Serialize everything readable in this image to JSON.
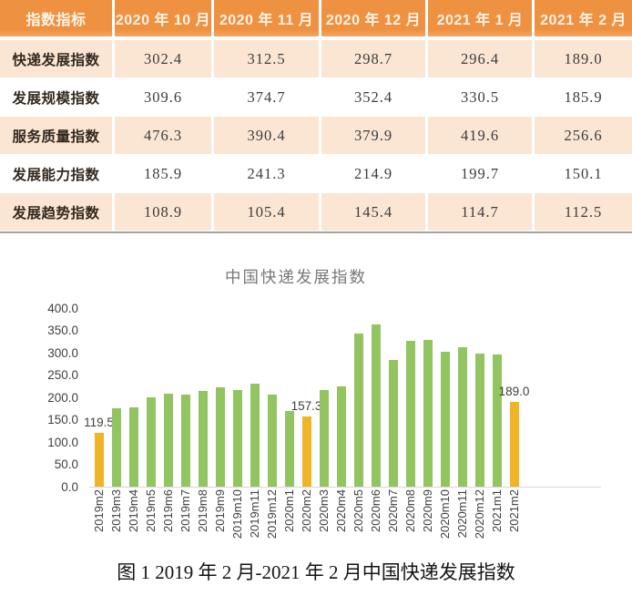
{
  "table": {
    "columns": [
      "指数指标",
      "2020 年 10 月",
      "2020 年 11 月",
      "2020 年 12 月",
      "2021 年 1 月",
      "2021 年 2 月"
    ],
    "rows": [
      {
        "label": "快递发展指数",
        "values": [
          "302.4",
          "312.5",
          "298.7",
          "296.4",
          "189.0"
        ]
      },
      {
        "label": "发展规模指数",
        "values": [
          "309.6",
          "374.7",
          "352.4",
          "330.5",
          "185.9"
        ]
      },
      {
        "label": "服务质量指数",
        "values": [
          "476.3",
          "390.4",
          "379.9",
          "419.6",
          "256.6"
        ]
      },
      {
        "label": "发展能力指数",
        "values": [
          "185.9",
          "241.3",
          "214.9",
          "199.7",
          "150.1"
        ]
      },
      {
        "label": "发展趋势指数",
        "values": [
          "108.9",
          "105.4",
          "145.4",
          "114.7",
          "112.5"
        ]
      }
    ],
    "colors": {
      "header_bg": "#ee9140",
      "header_bg_light": "#f3a765",
      "header_text": "#fdf4e8",
      "row_odd_bg": "#fbe6d3",
      "row_even_bg": "#ffffff",
      "body_text": "#3c3c3c",
      "bottom_border": "#a6a29c"
    }
  },
  "chart_data": {
    "type": "bar",
    "title": "中国快递发展指数",
    "x": [
      "2019m2",
      "2019m3",
      "2019m4",
      "2019m5",
      "2019m6",
      "2019m7",
      "2019m8",
      "2019m9",
      "2019m10",
      "2019m11",
      "2019m12",
      "2020m1",
      "2020m2",
      "2020m3",
      "2020m4",
      "2020m5",
      "2020m6",
      "2020m7",
      "2020m8",
      "2020m9",
      "2020m10",
      "2020m11",
      "2020m12",
      "2021m1",
      "2021m2"
    ],
    "values": [
      119.5,
      176,
      178,
      200,
      209,
      207,
      215,
      223,
      217,
      230,
      206,
      169,
      157.3,
      216,
      224,
      343,
      364,
      283,
      327,
      329,
      302.4,
      312.5,
      298.7,
      296.4,
      189.0
    ],
    "highlight_indexes": [
      0,
      12,
      24
    ],
    "data_labels": [
      {
        "index": 0,
        "text": "119.5"
      },
      {
        "index": 12,
        "text": "157.3"
      },
      {
        "index": 24,
        "text": "189.0"
      }
    ],
    "bar_color": "#92c45f",
    "highlight_color": "#f0b428",
    "ylim": [
      0,
      400
    ],
    "ytick_step": 50,
    "yticks": [
      "400.0",
      "350.0",
      "300.0",
      "250.0",
      "200.0",
      "150.0",
      "100.0",
      "50.0",
      "0.0"
    ],
    "grid": false,
    "legend": null,
    "axis_line_color": "#d6d6d6",
    "tick_text_color": "#404040",
    "title_color": "#787878",
    "data_label_color": "#3f3f3f"
  },
  "caption": "图 1 2019 年 2 月-2021 年 2 月中国快递发展指数"
}
